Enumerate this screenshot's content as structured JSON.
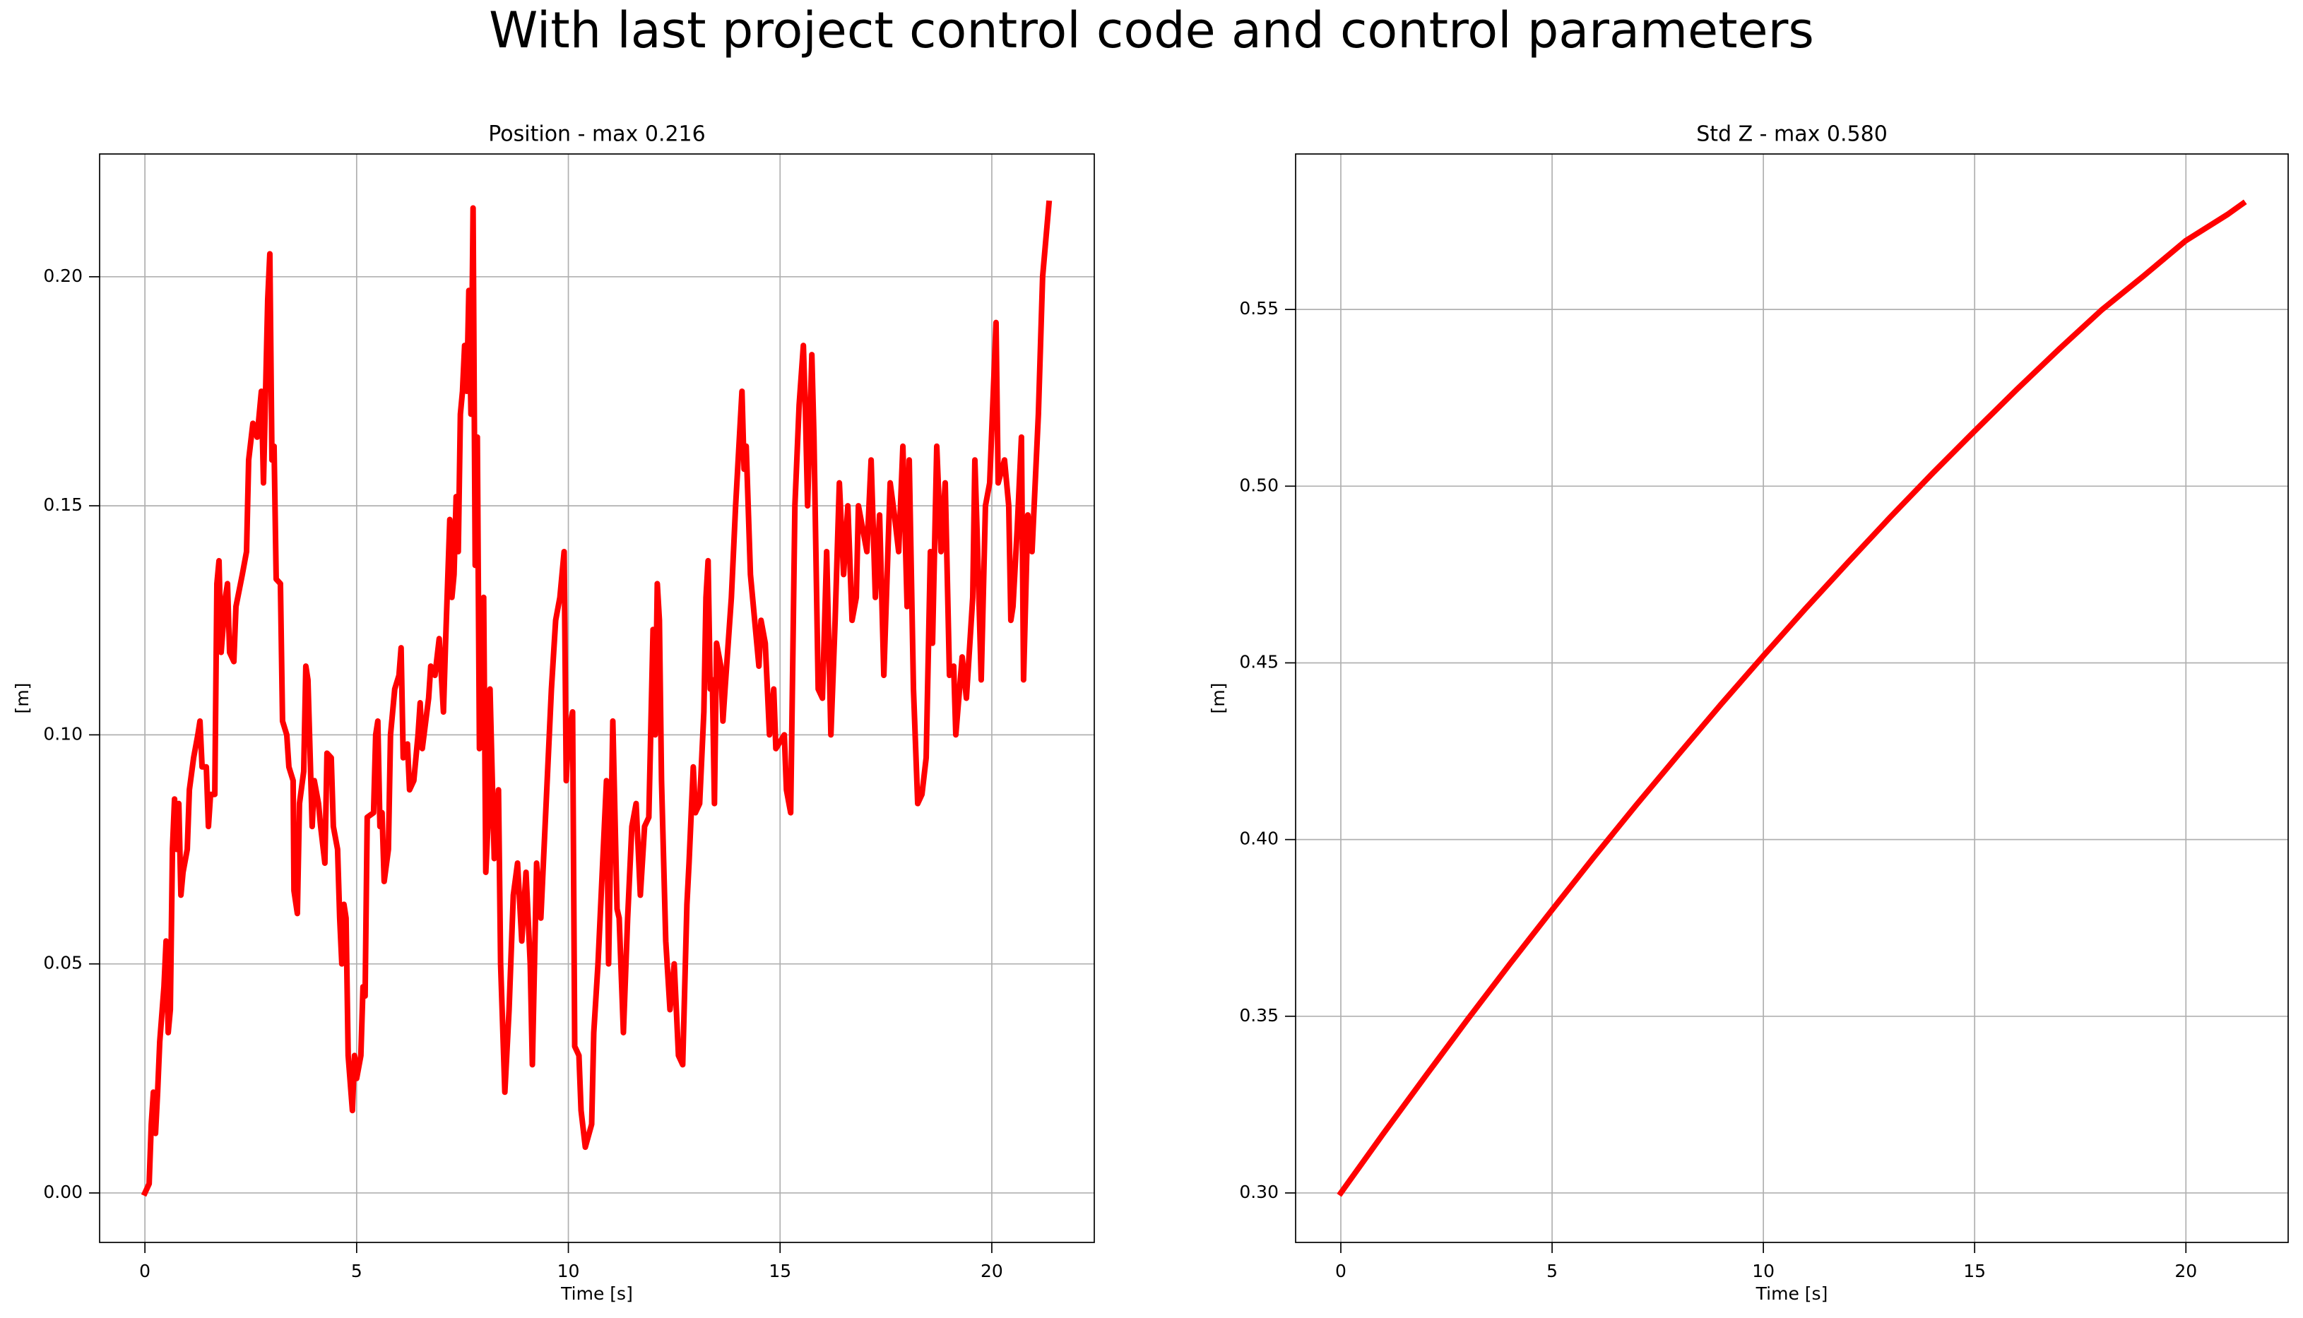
{
  "title": "With last project control code and control parameters",
  "chart_data": [
    {
      "type": "line",
      "title": "Position - max 0.216",
      "xlabel": "Time [s]",
      "ylabel": "[m]",
      "color": "#ff0000",
      "grid": true,
      "xlim": [
        -1.07,
        22.42
      ],
      "ylim": [
        -0.0108,
        0.2268
      ],
      "xticks": [
        0,
        5,
        10,
        15,
        20
      ],
      "yticks": [
        {
          "value": 0,
          "label": "0.00"
        },
        {
          "value": 0.05,
          "label": "0.05"
        },
        {
          "value": 0.1,
          "label": "0.10"
        },
        {
          "value": 0.15,
          "label": "0.15"
        },
        {
          "value": 0.2,
          "label": "0.20"
        }
      ],
      "x": [
        0,
        0.1,
        0.15,
        0.2,
        0.25,
        0.3,
        0.35,
        0.45,
        0.5,
        0.55,
        0.6,
        0.65,
        0.7,
        0.75,
        0.8,
        0.85,
        0.9,
        1.0,
        1.05,
        1.15,
        1.25,
        1.3,
        1.35,
        1.45,
        1.5,
        1.55,
        1.65,
        1.7,
        1.75,
        1.8,
        1.9,
        1.95,
        2.0,
        2.1,
        2.15,
        2.3,
        2.4,
        2.45,
        2.55,
        2.65,
        2.75,
        2.8,
        2.9,
        2.95,
        3.0,
        3.05,
        3.1,
        3.2,
        3.25,
        3.35,
        3.4,
        3.5,
        3.52,
        3.6,
        3.65,
        3.75,
        3.8,
        3.85,
        3.95,
        4.0,
        4.1,
        4.15,
        4.25,
        4.3,
        4.4,
        4.45,
        4.55,
        4.6,
        4.65,
        4.7,
        4.75,
        4.8,
        4.9,
        4.95,
        5.0,
        5.1,
        5.15,
        5.2,
        5.25,
        5.4,
        5.45,
        5.5,
        5.55,
        5.6,
        5.65,
        5.75,
        5.8,
        5.9,
        6.0,
        6.05,
        6.1,
        6.2,
        6.25,
        6.35,
        6.45,
        6.5,
        6.55,
        6.7,
        6.75,
        6.85,
        6.95,
        7.05,
        7.1,
        7.2,
        7.25,
        7.3,
        7.35,
        7.4,
        7.45,
        7.5,
        7.55,
        7.6,
        7.65,
        7.7,
        7.75,
        7.8,
        7.85,
        7.9,
        8.0,
        8.05,
        8.1,
        8.15,
        8.25,
        8.35,
        8.4,
        8.5,
        8.6,
        8.7,
        8.8,
        8.9,
        9.0,
        9.1,
        9.15,
        9.25,
        9.35,
        9.45,
        9.6,
        9.7,
        9.8,
        9.9,
        9.95,
        10.0,
        10.1,
        10.15,
        10.25,
        10.3,
        10.4,
        10.55,
        10.6,
        10.7,
        10.75,
        10.85,
        10.9,
        10.95,
        11.05,
        11.15,
        11.2,
        11.3,
        11.4,
        11.5,
        11.6,
        11.7,
        11.8,
        11.9,
        12.0,
        12.05,
        12.1,
        12.15,
        12.2,
        12.3,
        12.4,
        12.5,
        12.55,
        12.6,
        12.7,
        12.8,
        12.85,
        12.95,
        13.0,
        13.1,
        13.2,
        13.25,
        13.3,
        13.35,
        13.4,
        13.45,
        13.5,
        13.6,
        13.65,
        13.7,
        13.85,
        13.95,
        14.1,
        14.15,
        14.2,
        14.3,
        14.4,
        14.5,
        14.55,
        14.65,
        14.75,
        14.85,
        14.9,
        15.1,
        15.15,
        15.25,
        15.35,
        15.45,
        15.55,
        15.6,
        15.65,
        15.75,
        15.8,
        15.9,
        16.0,
        16.1,
        16.2,
        16.3,
        16.4,
        16.5,
        16.6,
        16.7,
        16.8,
        16.85,
        16.95,
        17.05,
        17.15,
        17.25,
        17.35,
        17.45,
        17.6,
        17.7,
        17.8,
        17.9,
        18.0,
        18.05,
        18.15,
        18.25,
        18.35,
        18.45,
        18.55,
        18.6,
        18.7,
        18.8,
        18.9,
        19.0,
        19.1,
        19.15,
        19.3,
        19.4,
        19.55,
        19.6,
        19.65,
        19.75,
        19.85,
        19.95,
        20.1,
        20.15,
        20.3,
        20.4,
        20.45,
        20.5,
        20.6,
        20.7,
        20.75,
        20.85,
        20.95,
        21.1,
        21.2,
        21.35
      ],
      "values": [
        0,
        0.002,
        0.015,
        0.022,
        0.013,
        0.022,
        0.033,
        0.045,
        0.055,
        0.035,
        0.04,
        0.075,
        0.086,
        0.075,
        0.085,
        0.065,
        0.07,
        0.075,
        0.088,
        0.095,
        0.1,
        0.103,
        0.093,
        0.093,
        0.08,
        0.087,
        0.087,
        0.133,
        0.138,
        0.118,
        0.13,
        0.133,
        0.118,
        0.116,
        0.128,
        0.135,
        0.14,
        0.16,
        0.168,
        0.165,
        0.175,
        0.155,
        0.195,
        0.205,
        0.16,
        0.163,
        0.134,
        0.133,
        0.103,
        0.1,
        0.093,
        0.09,
        0.066,
        0.061,
        0.085,
        0.092,
        0.115,
        0.112,
        0.08,
        0.09,
        0.085,
        0.08,
        0.072,
        0.096,
        0.095,
        0.08,
        0.075,
        0.06,
        0.05,
        0.063,
        0.06,
        0.03,
        0.018,
        0.03,
        0.025,
        0.03,
        0.045,
        0.043,
        0.082,
        0.083,
        0.1,
        0.103,
        0.08,
        0.083,
        0.068,
        0.075,
        0.1,
        0.11,
        0.113,
        0.119,
        0.095,
        0.098,
        0.088,
        0.09,
        0.1,
        0.107,
        0.097,
        0.108,
        0.115,
        0.113,
        0.121,
        0.105,
        0.12,
        0.147,
        0.13,
        0.135,
        0.152,
        0.14,
        0.17,
        0.175,
        0.185,
        0.175,
        0.197,
        0.17,
        0.215,
        0.137,
        0.165,
        0.097,
        0.13,
        0.07,
        0.08,
        0.11,
        0.073,
        0.088,
        0.05,
        0.022,
        0.04,
        0.065,
        0.072,
        0.055,
        0.07,
        0.05,
        0.028,
        0.072,
        0.06,
        0.08,
        0.11,
        0.125,
        0.13,
        0.14,
        0.09,
        0.1,
        0.105,
        0.032,
        0.03,
        0.018,
        0.01,
        0.015,
        0.035,
        0.05,
        0.06,
        0.08,
        0.09,
        0.05,
        0.103,
        0.062,
        0.06,
        0.035,
        0.06,
        0.08,
        0.085,
        0.065,
        0.08,
        0.082,
        0.123,
        0.1,
        0.133,
        0.125,
        0.09,
        0.055,
        0.04,
        0.05,
        0.04,
        0.03,
        0.028,
        0.063,
        0.072,
        0.093,
        0.083,
        0.085,
        0.105,
        0.13,
        0.138,
        0.11,
        0.112,
        0.085,
        0.12,
        0.115,
        0.103,
        0.11,
        0.13,
        0.15,
        0.175,
        0.158,
        0.163,
        0.135,
        0.125,
        0.115,
        0.125,
        0.12,
        0.1,
        0.11,
        0.097,
        0.1,
        0.088,
        0.083,
        0.15,
        0.172,
        0.185,
        0.17,
        0.15,
        0.183,
        0.165,
        0.11,
        0.108,
        0.14,
        0.1,
        0.125,
        0.155,
        0.135,
        0.15,
        0.125,
        0.13,
        0.15,
        0.145,
        0.14,
        0.16,
        0.13,
        0.148,
        0.113,
        0.155,
        0.148,
        0.14,
        0.163,
        0.128,
        0.16,
        0.11,
        0.085,
        0.087,
        0.095,
        0.14,
        0.12,
        0.163,
        0.14,
        0.155,
        0.113,
        0.115,
        0.1,
        0.117,
        0.108,
        0.13,
        0.16,
        0.145,
        0.112,
        0.15,
        0.155,
        0.19,
        0.155,
        0.16,
        0.15,
        0.125,
        0.128,
        0.145,
        0.165,
        0.112,
        0.148,
        0.14,
        0.17,
        0.2,
        0.216
      ]
    },
    {
      "type": "line",
      "title": "Std Z - max 0.580",
      "xlabel": "Time [s]",
      "ylabel": "[m]",
      "color": "#ff0000",
      "grid": true,
      "xlim": [
        -1.07,
        22.42
      ],
      "ylim": [
        0.286,
        0.594
      ],
      "xticks": [
        0,
        5,
        10,
        15,
        20
      ],
      "yticks": [
        {
          "value": 0.3,
          "label": "0.30"
        },
        {
          "value": 0.35,
          "label": "0.35"
        },
        {
          "value": 0.4,
          "label": "0.40"
        },
        {
          "value": 0.45,
          "label": "0.45"
        },
        {
          "value": 0.5,
          "label": "0.50"
        },
        {
          "value": 0.55,
          "label": "0.55"
        }
      ],
      "x": [
        0,
        1,
        2,
        3,
        4,
        5,
        6,
        7,
        8,
        9,
        10,
        11,
        12,
        13,
        14,
        15,
        16,
        17,
        18,
        19,
        20,
        21,
        21.35
      ],
      "values": [
        0.3,
        0.3167,
        0.333,
        0.3491,
        0.3648,
        0.3801,
        0.3952,
        0.4099,
        0.4242,
        0.4383,
        0.452,
        0.4654,
        0.4784,
        0.4912,
        0.5036,
        0.5156,
        0.5274,
        0.5388,
        0.5498,
        0.5595,
        0.5695,
        0.577,
        0.58
      ]
    }
  ]
}
